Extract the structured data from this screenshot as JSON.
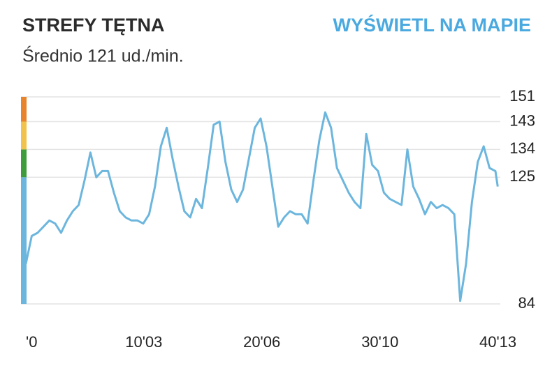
{
  "chart_data": {
    "type": "line",
    "title": "STREFY TĘTNA",
    "link": "WYŚWIETL NA MAPIE",
    "subtitle": "Średnio 121 ud./min.",
    "x": [
      0,
      0.5,
      1,
      1.5,
      2,
      2.5,
      3,
      3.5,
      4,
      4.5,
      5,
      5.5,
      6,
      6.5,
      7,
      7.5,
      8,
      8.5,
      9,
      9.5,
      10,
      10.5,
      11,
      11.5,
      12,
      12.5,
      13,
      13.5,
      14,
      14.5,
      15,
      15.5,
      16,
      16.5,
      17,
      17.5,
      18,
      18.5,
      19,
      19.5,
      20,
      20.5,
      21,
      21.5,
      22,
      22.5,
      23,
      23.5,
      24,
      24.5,
      25,
      25.5,
      26,
      26.5,
      27,
      27.5,
      28,
      28.5,
      29,
      29.5,
      30,
      30.5,
      31,
      31.5,
      32,
      32.5,
      33,
      33.5,
      34,
      34.5,
      35,
      35.5,
      36,
      36.5,
      37,
      37.5,
      38,
      38.5,
      39,
      39.5,
      40,
      40.2
    ],
    "values": [
      97,
      106,
      107,
      109,
      111,
      110,
      107,
      111,
      114,
      116,
      124,
      133,
      125,
      127,
      127,
      120,
      114,
      112,
      111,
      111,
      110,
      113,
      122,
      135,
      141,
      131,
      122,
      114,
      112,
      118,
      115,
      128,
      142,
      143,
      130,
      121,
      117,
      121,
      131,
      141,
      144,
      135,
      122,
      109,
      112,
      114,
      113,
      113,
      110,
      124,
      137,
      146,
      141,
      128,
      124,
      120,
      117,
      115,
      139,
      129,
      127,
      120,
      118,
      117,
      116,
      134,
      122,
      118,
      113,
      117,
      115,
      116,
      115,
      113,
      85,
      97,
      117,
      130,
      135,
      128,
      127,
      122
    ],
    "xlim": [
      0,
      40.217
    ],
    "xticks": [
      {
        "value": 0,
        "label": "'0"
      },
      {
        "value": 10.05,
        "label": "10'03"
      },
      {
        "value": 20.1,
        "label": "20'06"
      },
      {
        "value": 30.167,
        "label": "30'10"
      },
      {
        "value": 40.217,
        "label": "40'13"
      }
    ],
    "ylim": [
      84,
      151
    ],
    "yticks": [
      84,
      125,
      134,
      143,
      151
    ],
    "zone_colors": [
      "#6cb6de",
      "#3f9c3a",
      "#f2c34c",
      "#e8852c"
    ],
    "title_color": "#2b2b2b",
    "link_color": "#4aa9df",
    "grid": true
  }
}
